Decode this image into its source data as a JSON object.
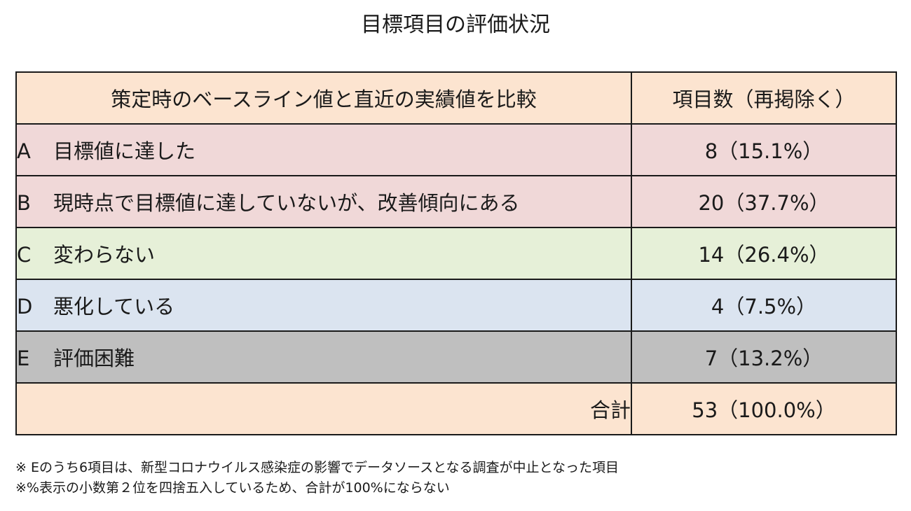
{
  "title": "目標項目の評価状況",
  "table": {
    "header": {
      "comparison": "策定時のベースライン値と直近の実績値を比較",
      "count": "項目数（再掲除く）"
    },
    "rows": [
      {
        "letter": "A",
        "label": "目標値に達した",
        "count": "8（15.1%）"
      },
      {
        "letter": "B",
        "label": "現時点で目標値に達していないが、改善傾向にある",
        "count": "20（37.7%）"
      },
      {
        "letter": "C",
        "label": "変わらない",
        "count": "14（26.4%）"
      },
      {
        "letter": "D",
        "label": "悪化している",
        "count": "4（7.5%）"
      },
      {
        "letter": "E",
        "label": "評価困難",
        "count": "7（13.2%）"
      }
    ],
    "total": {
      "label": "合計",
      "count": "53（100.0%）"
    }
  },
  "notes": [
    "※ Eのうち6項目は、新型コロナウイルス感染症の影響でデータソースとなる調査が中止となった項目",
    "※%表示の小数第２位を四捨五入しているため、合計が100%にならない"
  ],
  "colors": {
    "header_bg": "#fce4d0",
    "row_a_bg": "#f0d8d8",
    "row_b_bg": "#f0d8d8",
    "row_c_bg": "#e6f0d8",
    "row_d_bg": "#dbe4f0",
    "row_e_bg": "#bfbfbf",
    "total_bg": "#fce4d0"
  }
}
